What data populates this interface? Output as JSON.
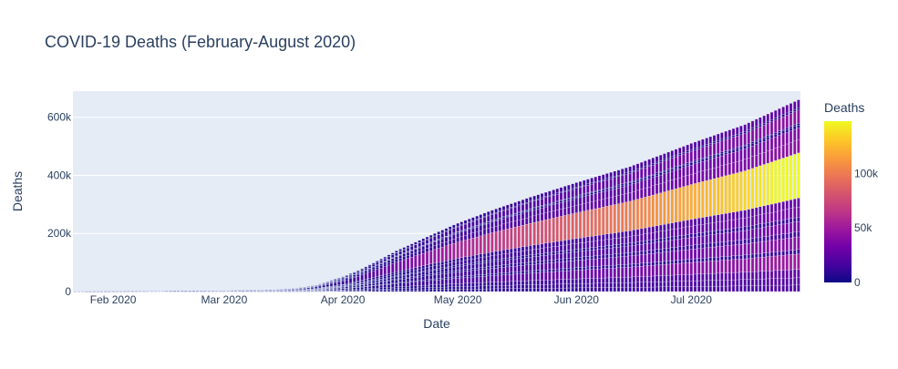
{
  "chart_data": {
    "type": "bar",
    "barmode": "stack",
    "title": "COVID-19 Deaths (February-August 2020)",
    "xlabel": "Date",
    "ylabel": "Deaths",
    "x_range": [
      "2020-01-22",
      "2020-07-29"
    ],
    "x_ticks": [
      {
        "date": "2020-02-01",
        "label": "Feb 2020"
      },
      {
        "date": "2020-03-01",
        "label": "Mar 2020"
      },
      {
        "date": "2020-04-01",
        "label": "Apr 2020"
      },
      {
        "date": "2020-05-01",
        "label": "May 2020"
      },
      {
        "date": "2020-06-01",
        "label": "Jun 2020"
      },
      {
        "date": "2020-07-01",
        "label": "Jul 2020"
      }
    ],
    "ylim": [
      0,
      690000
    ],
    "y_ticks": [
      {
        "value": 0,
        "label": "0"
      },
      {
        "value": 200000,
        "label": "200k"
      },
      {
        "value": 400000,
        "label": "400k"
      },
      {
        "value": 600000,
        "label": "600k"
      }
    ],
    "grid": true,
    "colorbar": {
      "title": "Deaths",
      "range": [
        0,
        148000
      ],
      "ticks": [
        {
          "value": 0,
          "label": "0"
        },
        {
          "value": 50000,
          "label": "50k"
        },
        {
          "value": 100000,
          "label": "100k"
        }
      ],
      "colorscale": [
        "#0d0887",
        "#46039f",
        "#7201a8",
        "#9c179e",
        "#bd3786",
        "#d8576b",
        "#ed7953",
        "#fb9f3a",
        "#fdca26",
        "#f0f921"
      ]
    },
    "colors": {
      "plot_background": "#e5ecf6",
      "gridline": "#ffffff",
      "text": "#2a3f5f"
    },
    "totals_by_date": [
      [
        "2020-01-22",
        17
      ],
      [
        "2020-02-01",
        259
      ],
      [
        "2020-02-15",
        1666
      ],
      [
        "2020-03-01",
        3000
      ],
      [
        "2020-03-10",
        4300
      ],
      [
        "2020-03-15",
        6500
      ],
      [
        "2020-03-20",
        11000
      ],
      [
        "2020-03-25",
        22000
      ],
      [
        "2020-04-01",
        51000
      ],
      [
        "2020-04-05",
        72000
      ],
      [
        "2020-04-10",
        105000
      ],
      [
        "2020-04-15",
        140000
      ],
      [
        "2020-04-20",
        170000
      ],
      [
        "2020-04-25",
        200000
      ],
      [
        "2020-05-01",
        235000
      ],
      [
        "2020-05-10",
        280000
      ],
      [
        "2020-05-20",
        325000
      ],
      [
        "2020-06-01",
        375000
      ],
      [
        "2020-06-15",
        430000
      ],
      [
        "2020-07-01",
        510000
      ],
      [
        "2020-07-15",
        575000
      ],
      [
        "2020-07-29",
        660000
      ]
    ],
    "country_shares": [
      {
        "share": 0.034,
        "final": 22000
      },
      {
        "share": 0.038,
        "final": 25000
      },
      {
        "share": 0.044,
        "final": 29000
      },
      {
        "share": 0.08,
        "final": 52000
      },
      {
        "share": 0.023,
        "final": 15000
      },
      {
        "share": 0.066,
        "final": 43000
      },
      {
        "share": 0.027,
        "final": 18000
      },
      {
        "share": 0.053,
        "final": 35000
      },
      {
        "share": 0.023,
        "final": 15000
      },
      {
        "share": 0.053,
        "final": 35000
      },
      {
        "share": 0.046,
        "final": 30000
      },
      {
        "share": 0.235,
        "final": 155000
      },
      {
        "share": 0.069,
        "final": 45000
      },
      {
        "share": 0.062,
        "final": 41000
      },
      {
        "share": 0.015,
        "final": 10000
      },
      {
        "share": 0.009,
        "final": 6000
      },
      {
        "share": 0.069,
        "final": 45000
      },
      {
        "share": 0.011,
        "final": 7000
      },
      {
        "share": 0.042,
        "final": 28000
      }
    ]
  }
}
